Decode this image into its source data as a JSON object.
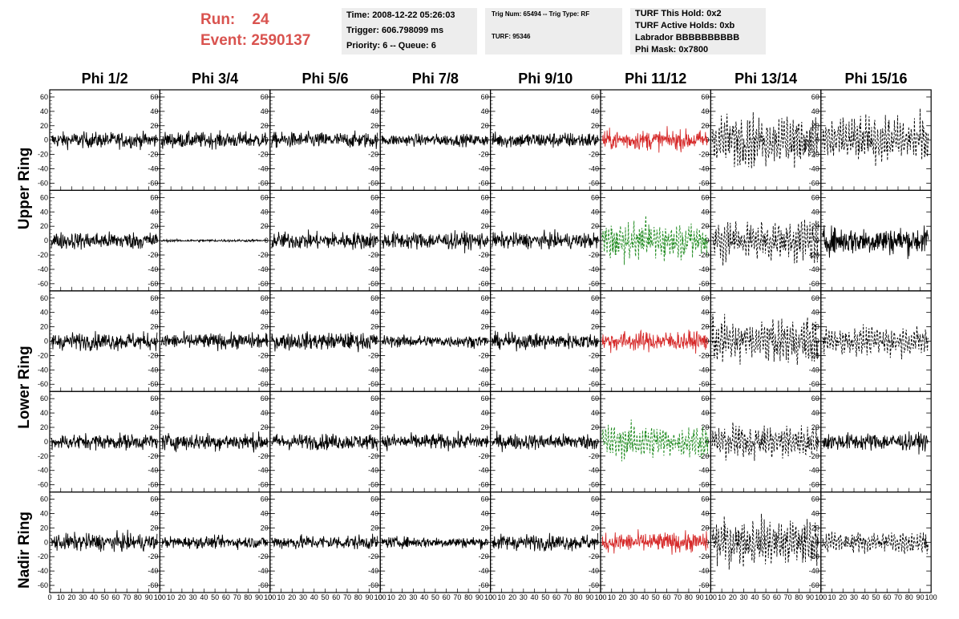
{
  "header": {
    "run_label": "Run:",
    "run_value": "24",
    "event_label": "Event:",
    "event_value": "2590137"
  },
  "info_time": {
    "time": "Time: 2008-12-22 05:26:03",
    "trigger": "Trigger: 606.798099 ms",
    "priority": "Priority: 6 -- Queue: 6"
  },
  "info_trig": {
    "trig": "Trig Num: 65494 -- Trig Type: RF",
    "turf": "TURF: 95346"
  },
  "info_turf": {
    "hold": "TURF This Hold: 0x2",
    "active": "TURF Active Holds: 0xb",
    "labrador": "Labrador BBBBBBBBBB",
    "phimask": "Phi Mask: 0x7800"
  },
  "columns": [
    "Phi 1/2",
    "Phi 3/4",
    "Phi 5/6",
    "Phi 7/8",
    "Phi 9/10",
    "Phi 11/12",
    "Phi 13/14",
    "Phi 15/16"
  ],
  "ring_labels": [
    "Upper Ring",
    "Lower Ring",
    "Nadir Ring"
  ],
  "chart_data": {
    "type": "line",
    "y_ticks": [
      "60",
      "40",
      "20",
      "0",
      "-20",
      "-40",
      "-60"
    ],
    "ylim": [
      -70,
      70
    ],
    "x_ticks": [
      "0",
      "10",
      "20",
      "30",
      "40",
      "50",
      "60",
      "70",
      "80",
      "90",
      "100"
    ],
    "xlim": [
      0,
      100
    ],
    "colors": {
      "black": "#000000",
      "red": "#d62a2a",
      "green": "#1e8a1e"
    },
    "panels": [
      {
        "row": 0,
        "col": 0,
        "style": "solid",
        "color": "black",
        "amplitude": 20
      },
      {
        "row": 0,
        "col": 1,
        "style": "solid",
        "color": "black",
        "amplitude": 20
      },
      {
        "row": 0,
        "col": 2,
        "style": "solid",
        "color": "black",
        "amplitude": 20
      },
      {
        "row": 0,
        "col": 3,
        "style": "solid",
        "color": "black",
        "amplitude": 15
      },
      {
        "row": 0,
        "col": 4,
        "style": "solid",
        "color": "black",
        "amplitude": 20
      },
      {
        "row": 0,
        "col": 5,
        "style": "solid",
        "color": "red",
        "amplitude": 25
      },
      {
        "row": 0,
        "col": 6,
        "style": "dashed",
        "color": "black",
        "amplitude": 45
      },
      {
        "row": 0,
        "col": 7,
        "style": "dashed",
        "color": "black",
        "amplitude": 40
      },
      {
        "row": 1,
        "col": 0,
        "style": "solid",
        "color": "black",
        "amplitude": 22
      },
      {
        "row": 1,
        "col": 1,
        "style": "solid",
        "color": "black",
        "amplitude": 3
      },
      {
        "row": 1,
        "col": 2,
        "style": "solid",
        "color": "black",
        "amplitude": 22
      },
      {
        "row": 1,
        "col": 3,
        "style": "solid",
        "color": "black",
        "amplitude": 22
      },
      {
        "row": 1,
        "col": 4,
        "style": "solid",
        "color": "black",
        "amplitude": 20
      },
      {
        "row": 1,
        "col": 5,
        "style": "dashed",
        "color": "green",
        "amplitude": 35
      },
      {
        "row": 1,
        "col": 6,
        "style": "dashed",
        "color": "black",
        "amplitude": 40
      },
      {
        "row": 1,
        "col": 7,
        "style": "solid",
        "color": "black",
        "amplitude": 35
      },
      {
        "row": 2,
        "col": 0,
        "style": "solid",
        "color": "black",
        "amplitude": 22
      },
      {
        "row": 2,
        "col": 1,
        "style": "solid",
        "color": "black",
        "amplitude": 20
      },
      {
        "row": 2,
        "col": 2,
        "style": "solid",
        "color": "black",
        "amplitude": 22
      },
      {
        "row": 2,
        "col": 3,
        "style": "solid",
        "color": "black",
        "amplitude": 15
      },
      {
        "row": 2,
        "col": 4,
        "style": "solid",
        "color": "black",
        "amplitude": 20
      },
      {
        "row": 2,
        "col": 5,
        "style": "solid",
        "color": "red",
        "amplitude": 25
      },
      {
        "row": 2,
        "col": 6,
        "style": "dashed",
        "color": "black",
        "amplitude": 40
      },
      {
        "row": 2,
        "col": 7,
        "style": "dashed",
        "color": "black",
        "amplitude": 25
      },
      {
        "row": 3,
        "col": 0,
        "style": "solid",
        "color": "black",
        "amplitude": 20
      },
      {
        "row": 3,
        "col": 1,
        "style": "solid",
        "color": "black",
        "amplitude": 22
      },
      {
        "row": 3,
        "col": 2,
        "style": "solid",
        "color": "black",
        "amplitude": 20
      },
      {
        "row": 3,
        "col": 3,
        "style": "solid",
        "color": "black",
        "amplitude": 20
      },
      {
        "row": 3,
        "col": 4,
        "style": "solid",
        "color": "black",
        "amplitude": 20
      },
      {
        "row": 3,
        "col": 5,
        "style": "dashed",
        "color": "green",
        "amplitude": 30
      },
      {
        "row": 3,
        "col": 6,
        "style": "dashed",
        "color": "black",
        "amplitude": 32
      },
      {
        "row": 3,
        "col": 7,
        "style": "solid",
        "color": "black",
        "amplitude": 22
      },
      {
        "row": 4,
        "col": 0,
        "style": "solid",
        "color": "black",
        "amplitude": 22
      },
      {
        "row": 4,
        "col": 1,
        "style": "solid",
        "color": "black",
        "amplitude": 15
      },
      {
        "row": 4,
        "col": 2,
        "style": "solid",
        "color": "black",
        "amplitude": 18
      },
      {
        "row": 4,
        "col": 3,
        "style": "solid",
        "color": "black",
        "amplitude": 14
      },
      {
        "row": 4,
        "col": 4,
        "style": "solid",
        "color": "black",
        "amplitude": 20
      },
      {
        "row": 4,
        "col": 5,
        "style": "solid",
        "color": "red",
        "amplitude": 25
      },
      {
        "row": 4,
        "col": 6,
        "style": "dashed",
        "color": "black",
        "amplitude": 42
      },
      {
        "row": 4,
        "col": 7,
        "style": "dashed",
        "color": "black",
        "amplitude": 20
      }
    ]
  }
}
